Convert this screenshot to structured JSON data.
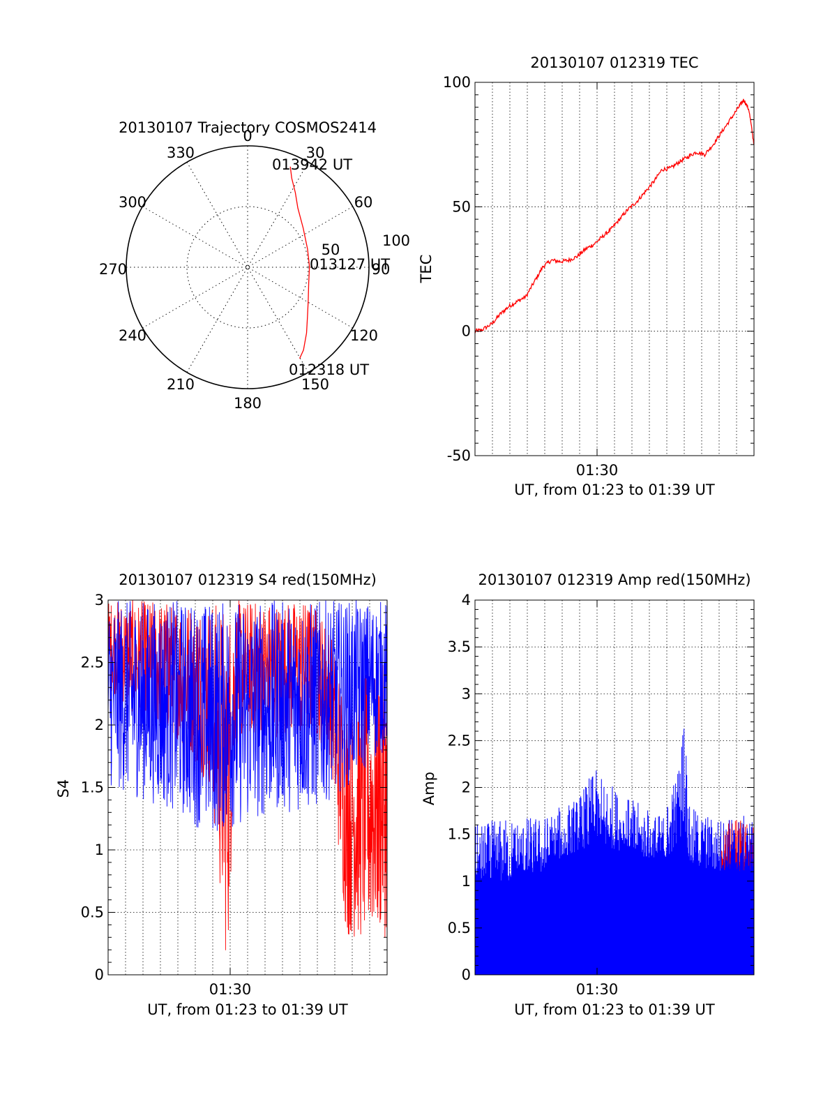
{
  "chart_data": [
    {
      "type": "polar",
      "title": "20130107 Trajectory COSMOS2414",
      "azimuth_labels": [
        "0",
        "30",
        "60",
        "90",
        "120",
        "150",
        "180",
        "210",
        "240",
        "270",
        "300",
        "330"
      ],
      "radial_labels": [
        "50",
        "100"
      ],
      "rlim": [
        0,
        100
      ],
      "grid": true,
      "series": [
        {
          "color": "#ff0000",
          "points": [
            [
              23.0,
              90
            ],
            [
              26.3,
              82
            ],
            [
              32.6,
              73
            ],
            [
              40.3,
              64
            ],
            [
              54.9,
              56
            ],
            [
              73.1,
              51.6
            ],
            [
              89.4,
              51
            ],
            [
              104.4,
              52
            ],
            [
              118.8,
              57
            ],
            [
              129.6,
              64
            ],
            [
              138.1,
              72.7
            ],
            [
              146.0,
              82.3
            ],
            [
              150.3,
              86.5
            ]
          ]
        }
      ],
      "annotations": [
        {
          "text": "013942 UT",
          "az": 23.0,
          "r": 90
        },
        {
          "text": "013127 UT",
          "az": 89.4,
          "r": 51
        },
        {
          "text": "012318 UT",
          "az": 150.3,
          "r": 86.5
        }
      ]
    },
    {
      "type": "line",
      "title": "20130107 012319 TEC",
      "xlabel": "UT, from 01:23 to 01:39 UT",
      "ylabel": "TEC",
      "x_ticks": [
        "01:30"
      ],
      "xlim_minutes": [
        0,
        16.4
      ],
      "ylim": [
        -50,
        100
      ],
      "y_ticks": [
        -50,
        0,
        50,
        100
      ],
      "grid": true,
      "series": [
        {
          "color": "#ff0000",
          "points": [
            [
              0,
              0
            ],
            [
              0.4,
              0.5
            ],
            [
              1,
              3
            ],
            [
              1.5,
              7
            ],
            [
              2,
              10
            ],
            [
              2.5,
              12
            ],
            [
              3,
              14
            ],
            [
              3.5,
              20
            ],
            [
              4,
              26
            ],
            [
              4.5,
              28.5
            ],
            [
              5,
              28
            ],
            [
              5.5,
              28.5
            ],
            [
              6,
              30
            ],
            [
              6.5,
              33
            ],
            [
              7,
              35
            ],
            [
              7.5,
              38
            ],
            [
              8,
              41
            ],
            [
              8.5,
              45
            ],
            [
              9,
              49
            ],
            [
              9.5,
              52
            ],
            [
              10,
              56
            ],
            [
              10.5,
              60
            ],
            [
              11,
              65
            ],
            [
              11.5,
              65.5
            ],
            [
              12,
              68
            ],
            [
              12.5,
              70
            ],
            [
              13,
              72
            ],
            [
              13.5,
              71
            ],
            [
              14,
              75
            ],
            [
              14.5,
              80
            ],
            [
              15,
              85
            ],
            [
              15.5,
              90
            ],
            [
              15.8,
              93
            ],
            [
              16.1,
              89
            ],
            [
              16.4,
              75
            ]
          ]
        }
      ]
    },
    {
      "type": "line",
      "title": "20130107 012319 S4 red(150MHz)",
      "xlabel": "UT, from 01:23 to 01:39 UT",
      "ylabel": "S4",
      "x_ticks": [
        "01:30"
      ],
      "xlim_minutes": [
        0,
        16.4
      ],
      "ylim": [
        0,
        3
      ],
      "y_ticks": [
        "0",
        "0.5",
        "1",
        "1.5",
        "2",
        "2.5",
        "3"
      ],
      "grid": true,
      "series": [
        {
          "color": "#ff0000",
          "envelope": [
            [
              0,
              2.3,
              3
            ],
            [
              2,
              2.0,
              3
            ],
            [
              4,
              1.9,
              3
            ],
            [
              6,
              1.5,
              3
            ],
            [
              7,
              0,
              3
            ],
            [
              7.5,
              1.8,
              3
            ],
            [
              8,
              1.9,
              3
            ],
            [
              10,
              1.9,
              3
            ],
            [
              12,
              1.9,
              3
            ],
            [
              13,
              1.8,
              2.8
            ],
            [
              14,
              0.3,
              2.2
            ],
            [
              15,
              0.25,
              2.4
            ],
            [
              16.4,
              0.3,
              2.5
            ]
          ]
        },
        {
          "color": "#0000ff",
          "envelope": [
            [
              0,
              1.5,
              3
            ],
            [
              2,
              1.4,
              3
            ],
            [
              4,
              1.3,
              3
            ],
            [
              6,
              1.1,
              3
            ],
            [
              8,
              1.2,
              3
            ],
            [
              10,
              1.3,
              3
            ],
            [
              12,
              1.3,
              3
            ],
            [
              14,
              1.5,
              3
            ],
            [
              16.4,
              1.8,
              3
            ]
          ]
        }
      ]
    },
    {
      "type": "line",
      "title": "20130107 012319 Amp red(150MHz)",
      "xlabel": "UT, from 01:23 to 01:39 UT",
      "ylabel": "Amp",
      "x_ticks": [
        "01:30"
      ],
      "xlim_minutes": [
        0,
        16.4
      ],
      "ylim": [
        0,
        4
      ],
      "y_ticks": [
        "0",
        "0.5",
        "1",
        "1.5",
        "2",
        "2.5",
        "3",
        "3.5",
        "4"
      ],
      "grid": true,
      "series": [
        {
          "color": "#ff0000",
          "envelope": [
            [
              14.5,
              1.2,
              1.5
            ],
            [
              15,
              1.2,
              1.7
            ],
            [
              16.4,
              1.2,
              1.6
            ]
          ]
        },
        {
          "color": "#0000ff",
          "envelope": [
            [
              0,
              1.0,
              1.6
            ],
            [
              2,
              1.0,
              1.7
            ],
            [
              4,
              1.1,
              1.7
            ],
            [
              6,
              1.3,
              1.9
            ],
            [
              7,
              1.4,
              2.2
            ],
            [
              9,
              1.3,
              1.9
            ],
            [
              11,
              1.2,
              1.7
            ],
            [
              12,
              1.4,
              2.3
            ],
            [
              12.3,
              1.6,
              3.0
            ],
            [
              12.6,
              1.2,
              1.8
            ],
            [
              14,
              1.1,
              1.7
            ],
            [
              16.4,
              1.1,
              1.7
            ]
          ]
        }
      ]
    }
  ]
}
